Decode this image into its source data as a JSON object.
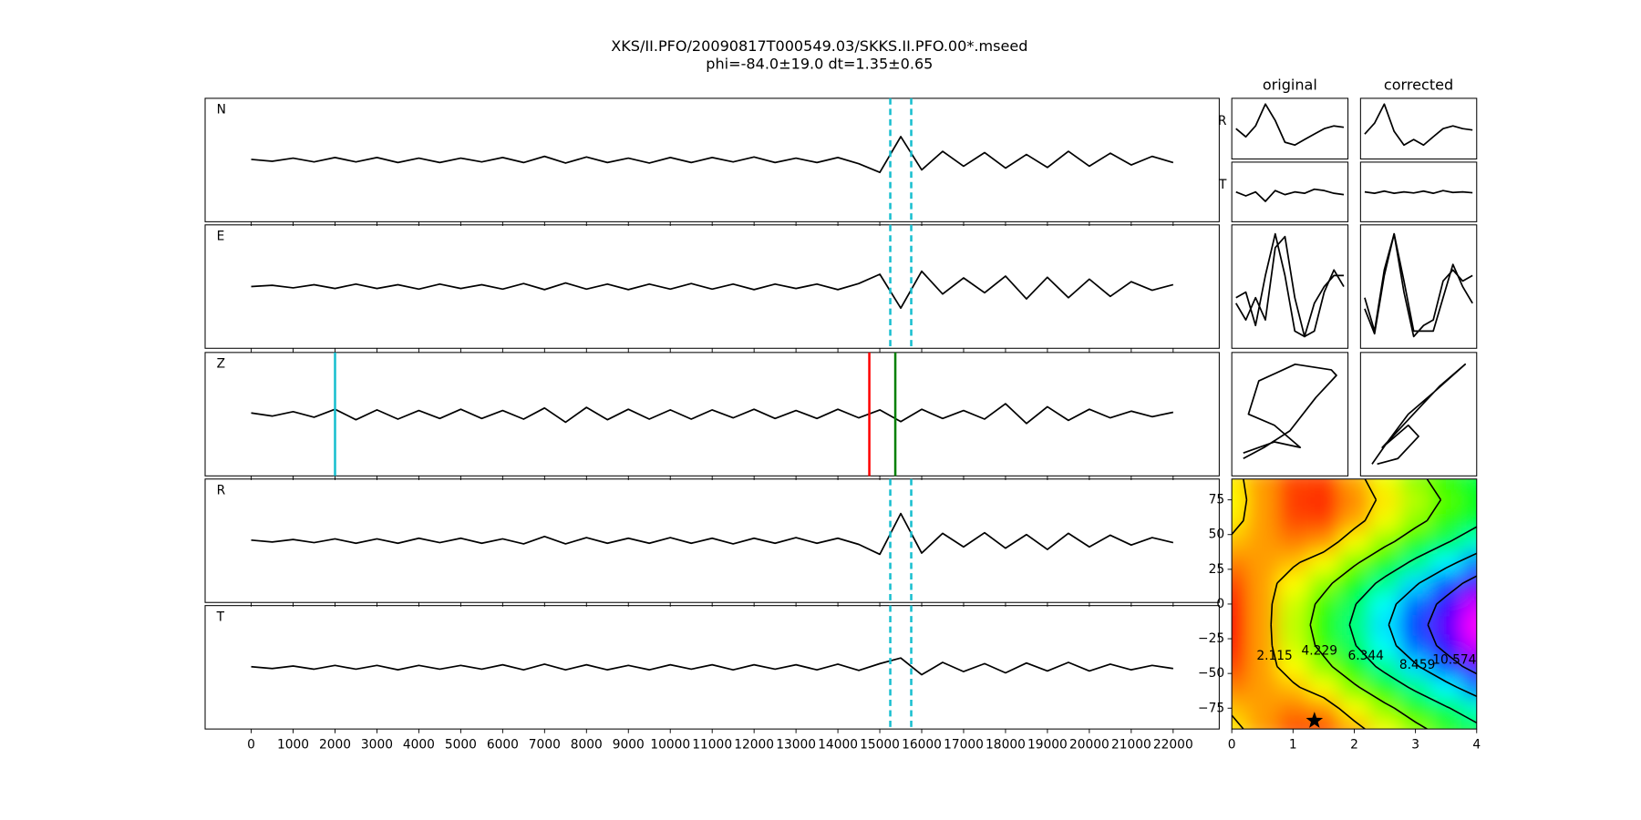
{
  "title": "XKS/II.PFO/20090817T000549.03/SKKS.II.PFO.00*.mseed",
  "subtitle": "phi=-84.0±19.0 dt=1.35±0.65",
  "chart_data": [
    {
      "type": "traces",
      "x": [
        0,
        500,
        1000,
        1500,
        2000,
        2500,
        3000,
        3500,
        4000,
        4500,
        5000,
        5500,
        6000,
        6500,
        7000,
        7500,
        8000,
        8500,
        9000,
        9500,
        10000,
        10500,
        11000,
        11500,
        12000,
        12500,
        13000,
        13500,
        14000,
        14500,
        15000,
        15500,
        16000,
        16500,
        17000,
        17500,
        18000,
        18500,
        19000,
        19500,
        20000,
        20500,
        21000,
        21500,
        22000
      ],
      "xlim": [
        -1100,
        23100
      ],
      "ylim": [
        -1,
        1
      ],
      "xticks": [
        0,
        1000,
        2000,
        3000,
        4000,
        5000,
        6000,
        7000,
        8000,
        9000,
        10000,
        11000,
        12000,
        13000,
        14000,
        15000,
        16000,
        17000,
        18000,
        19000,
        20000,
        21000,
        22000
      ],
      "color": "#000000",
      "series": [
        {
          "name": "N",
          "values": [
            0.01,
            -0.02,
            0.03,
            -0.03,
            0.04,
            -0.03,
            0.04,
            -0.04,
            0.03,
            -0.04,
            0.03,
            -0.03,
            0.04,
            -0.04,
            0.06,
            -0.05,
            0.05,
            -0.04,
            0.03,
            -0.05,
            0.04,
            -0.04,
            0.04,
            -0.03,
            0.05,
            -0.04,
            0.03,
            -0.04,
            0.04,
            -0.06,
            -0.2,
            0.38,
            -0.16,
            0.14,
            -0.1,
            0.12,
            -0.13,
            0.09,
            -0.12,
            0.14,
            -0.1,
            0.11,
            -0.08,
            0.06,
            -0.04
          ],
          "vlines": [
            {
              "x": 15250,
              "color": "#17becf",
              "style": "dashed"
            },
            {
              "x": 15750,
              "color": "#17becf",
              "style": "dashed"
            }
          ]
        },
        {
          "name": "E",
          "values": [
            0.0,
            0.02,
            -0.02,
            0.03,
            -0.03,
            0.04,
            -0.03,
            0.03,
            -0.04,
            0.04,
            -0.03,
            0.03,
            -0.04,
            0.05,
            -0.05,
            0.06,
            -0.04,
            0.04,
            -0.05,
            0.04,
            -0.04,
            0.05,
            -0.04,
            0.04,
            -0.05,
            0.04,
            -0.03,
            0.04,
            -0.05,
            0.05,
            0.2,
            -0.35,
            0.25,
            -0.12,
            0.14,
            -0.1,
            0.17,
            -0.2,
            0.15,
            -0.18,
            0.12,
            -0.16,
            0.08,
            -0.06,
            0.03
          ],
          "vlines": [
            {
              "x": 15250,
              "color": "#17becf",
              "style": "dashed"
            },
            {
              "x": 15750,
              "color": "#17becf",
              "style": "dashed"
            }
          ]
        },
        {
          "name": "Z",
          "values": [
            0.02,
            -0.03,
            0.04,
            -0.05,
            0.08,
            -0.09,
            0.07,
            -0.08,
            0.06,
            -0.07,
            0.08,
            -0.07,
            0.06,
            -0.08,
            0.1,
            -0.13,
            0.11,
            -0.09,
            0.08,
            -0.08,
            0.07,
            -0.08,
            0.07,
            -0.06,
            0.08,
            -0.07,
            0.06,
            -0.07,
            0.08,
            -0.06,
            0.07,
            -0.12,
            0.08,
            -0.07,
            0.06,
            -0.08,
            0.17,
            -0.15,
            0.12,
            -0.1,
            0.08,
            -0.06,
            0.05,
            -0.04,
            0.03
          ],
          "vlines": [
            {
              "x": 2000,
              "color": "#17becf",
              "style": "solid"
            },
            {
              "x": 14750,
              "color": "#ff0000",
              "style": "solid"
            },
            {
              "x": 15370,
              "color": "#008000",
              "style": "solid"
            }
          ]
        },
        {
          "name": "R",
          "values": [
            0.01,
            -0.02,
            0.02,
            -0.03,
            0.03,
            -0.04,
            0.03,
            -0.04,
            0.04,
            -0.03,
            0.04,
            -0.04,
            0.03,
            -0.05,
            0.07,
            -0.05,
            0.05,
            -0.04,
            0.04,
            -0.04,
            0.05,
            -0.04,
            0.04,
            -0.05,
            0.04,
            -0.04,
            0.05,
            -0.04,
            0.04,
            -0.06,
            -0.22,
            0.44,
            -0.2,
            0.12,
            -0.1,
            0.13,
            -0.12,
            0.1,
            -0.14,
            0.12,
            -0.1,
            0.09,
            -0.07,
            0.05,
            -0.03
          ],
          "vlines": [
            {
              "x": 15250,
              "color": "#17becf",
              "style": "dashed"
            },
            {
              "x": 15750,
              "color": "#17becf",
              "style": "dashed"
            }
          ]
        },
        {
          "name": "T",
          "values": [
            0.01,
            -0.02,
            0.02,
            -0.03,
            0.03,
            -0.03,
            0.03,
            -0.04,
            0.03,
            -0.03,
            0.03,
            -0.03,
            0.04,
            -0.04,
            0.05,
            -0.04,
            0.04,
            -0.04,
            0.03,
            -0.04,
            0.04,
            -0.03,
            0.04,
            -0.04,
            0.04,
            -0.03,
            0.04,
            -0.04,
            0.05,
            -0.05,
            0.06,
            0.15,
            -0.12,
            0.08,
            -0.07,
            0.06,
            -0.09,
            0.07,
            -0.06,
            0.08,
            -0.06,
            0.05,
            -0.04,
            0.03,
            -0.02
          ],
          "vlines": [
            {
              "x": 15250,
              "color": "#17becf",
              "style": "dashed"
            },
            {
              "x": 15750,
              "color": "#17becf",
              "style": "dashed"
            }
          ]
        }
      ]
    },
    {
      "type": "wavelets",
      "title": "original",
      "ylim": [
        -1,
        1
      ],
      "radial": {
        "name": "R",
        "values": [
          0.0,
          -0.3,
          0.1,
          0.9,
          0.3,
          -0.5,
          -0.6,
          -0.4,
          -0.2,
          0.0,
          0.1,
          0.05
        ]
      },
      "transverse": {
        "name": "T",
        "values": [
          0.0,
          -0.15,
          0.0,
          -0.35,
          0.05,
          -0.1,
          0.0,
          -0.05,
          0.1,
          0.05,
          -0.05,
          -0.1
        ]
      },
      "overlay": [
        {
          "color": "#ff0000",
          "values": [
            -0.2,
            -0.1,
            -0.7,
            0.2,
            0.95,
            0.2,
            -0.8,
            -0.9,
            -0.3,
            0.0,
            0.2,
            0.2
          ]
        },
        {
          "color": "#000000",
          "values": [
            -0.3,
            -0.6,
            -0.2,
            -0.6,
            0.7,
            0.9,
            -0.2,
            -0.9,
            -0.8,
            -0.1,
            0.3,
            0.0
          ]
        }
      ],
      "particle_motion": {
        "x": [
          -0.9,
          -0.5,
          0.0,
          0.5,
          0.9,
          0.8,
          0.1,
          -0.6,
          -0.8,
          -0.3,
          0.2,
          -0.3,
          -0.9
        ],
        "y": [
          -0.8,
          -0.6,
          -0.3,
          0.3,
          0.7,
          0.8,
          0.9,
          0.6,
          0.0,
          -0.2,
          -0.6,
          -0.5,
          -0.7
        ]
      }
    },
    {
      "type": "wavelets",
      "title": "corrected",
      "ylim": [
        -1,
        1
      ],
      "radial": {
        "values": [
          -0.2,
          0.2,
          0.9,
          -0.1,
          -0.6,
          -0.4,
          -0.6,
          -0.3,
          0.0,
          0.1,
          0.0,
          -0.05
        ]
      },
      "transverse": {
        "values": [
          0.0,
          -0.05,
          0.03,
          -0.05,
          0.0,
          -0.04,
          0.03,
          -0.05,
          0.05,
          -0.02,
          0.0,
          -0.03
        ]
      },
      "overlay": [
        {
          "color": "#ff0000",
          "values": [
            -0.4,
            -0.85,
            0.2,
            0.95,
            -0.1,
            -0.9,
            -0.7,
            -0.6,
            0.1,
            0.3,
            0.1,
            0.2
          ]
        },
        {
          "color": "#000000",
          "values": [
            -0.2,
            -0.8,
            0.3,
            0.95,
            0.1,
            -0.8,
            -0.8,
            -0.8,
            -0.2,
            0.4,
            0.0,
            -0.3
          ]
        }
      ],
      "particle_motion": {
        "x": [
          -0.9,
          -0.6,
          -0.2,
          0.3,
          0.9,
          0.4,
          -0.1,
          -0.5,
          -0.7,
          -0.2,
          0.0,
          -0.4,
          -0.8
        ],
        "y": [
          -0.9,
          -0.5,
          0.0,
          0.4,
          0.9,
          0.5,
          0.0,
          -0.4,
          -0.6,
          -0.2,
          -0.4,
          -0.8,
          -0.9
        ]
      }
    },
    {
      "type": "contour",
      "x": [
        0,
        0.5,
        1,
        1.5,
        2,
        2.5,
        3,
        3.5,
        4
      ],
      "y": [
        -90,
        -75,
        -60,
        -45,
        -30,
        -15,
        0,
        15,
        30,
        45,
        60,
        75,
        90
      ],
      "z": [
        [
          2.43,
          1.6,
          0.78,
          0.7,
          1.75,
          2.79,
          3.83,
          4.88,
          5.92
        ],
        [
          1.95,
          1.61,
          1.28,
          1.54,
          2.7,
          3.86,
          5.03,
          6.19,
          7.35
        ],
        [
          1.3,
          1.63,
          1.95,
          2.68,
          4.0,
          5.33,
          6.65,
          7.98,
          9.3
        ],
        [
          0.65,
          1.64,
          2.63,
          3.81,
          5.3,
          6.79,
          8.28,
          9.76,
          11.25
        ],
        [
          0.17,
          1.65,
          3.12,
          4.65,
          6.25,
          7.86,
          9.47,
          11.07,
          12.68
        ],
        [
          0,
          1.65,
          3.3,
          4.95,
          6.6,
          8.25,
          9.9,
          11.55,
          13.2
        ],
        [
          0.17,
          1.65,
          3.12,
          4.65,
          6.25,
          7.86,
          9.47,
          11.07,
          12.68
        ],
        [
          0.65,
          1.64,
          2.63,
          3.81,
          5.3,
          6.79,
          8.28,
          9.76,
          11.25
        ],
        [
          1.3,
          1.63,
          1.95,
          2.68,
          4.0,
          5.33,
          6.65,
          7.98,
          9.3
        ],
        [
          1.95,
          1.61,
          1.28,
          1.54,
          2.7,
          3.86,
          5.03,
          6.19,
          7.35
        ],
        [
          2.43,
          1.6,
          0.78,
          0.7,
          1.75,
          2.79,
          3.83,
          4.88,
          5.92
        ],
        [
          2.6,
          1.6,
          0.6,
          0.4,
          1.4,
          2.4,
          3.4,
          4.4,
          5.4
        ],
        [
          2.43,
          1.6,
          0.78,
          0.7,
          1.75,
          2.79,
          3.83,
          4.88,
          5.92
        ]
      ],
      "levels": [
        2.115,
        4.229,
        6.344,
        8.459,
        10.574
      ],
      "colormap": "hsv",
      "xlim": [
        0,
        4
      ],
      "ylim": [
        -90,
        90
      ],
      "xticks": [
        0,
        1,
        2,
        3,
        4
      ],
      "yticks": [
        {
          "value": -75,
          "label": "−75"
        },
        {
          "value": -50,
          "label": "−50"
        },
        {
          "value": -25,
          "label": "−25"
        },
        0,
        25,
        50,
        75
      ],
      "marker": {
        "x": 1.35,
        "y": -84
      }
    }
  ]
}
